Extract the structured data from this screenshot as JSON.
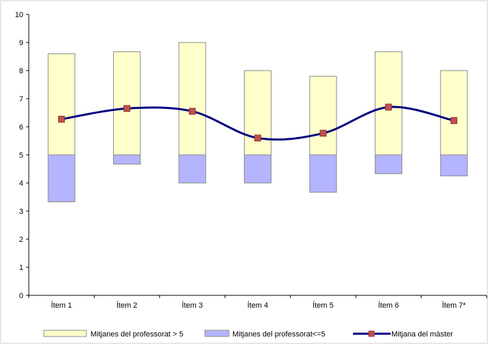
{
  "chart_data": {
    "type": "bar",
    "categories": [
      "Ítem 1",
      "Ítem 2",
      "Ítem 3",
      "Ítem 4",
      "Ítem 5",
      "Ítem 6",
      "Ítem 7*"
    ],
    "ylim": [
      0,
      10
    ],
    "yticks": [
      0,
      1,
      2,
      3,
      4,
      5,
      6,
      7,
      8,
      9,
      10
    ],
    "baseline": 5,
    "grid": false,
    "legend_position": "bottom",
    "series": [
      {
        "name": "Mitjanes del professorat > 5",
        "kind": "floating-bar-above-baseline",
        "values": [
          8.6,
          8.67,
          9.0,
          8.0,
          7.8,
          8.67,
          8.0
        ],
        "color": "#FFFFCC"
      },
      {
        "name": "Mitjanes del professorat<=5",
        "kind": "floating-bar-below-baseline",
        "values": [
          3.33,
          4.67,
          4.0,
          4.0,
          3.67,
          4.33,
          4.25
        ],
        "color": "#B4B4FF"
      },
      {
        "name": "Mitjana del màster",
        "kind": "smooth-line-with-markers",
        "values": [
          6.27,
          6.65,
          6.55,
          5.6,
          5.77,
          6.7,
          6.22
        ],
        "line_color": "#000080",
        "marker_color": "#C0504D"
      }
    ]
  }
}
